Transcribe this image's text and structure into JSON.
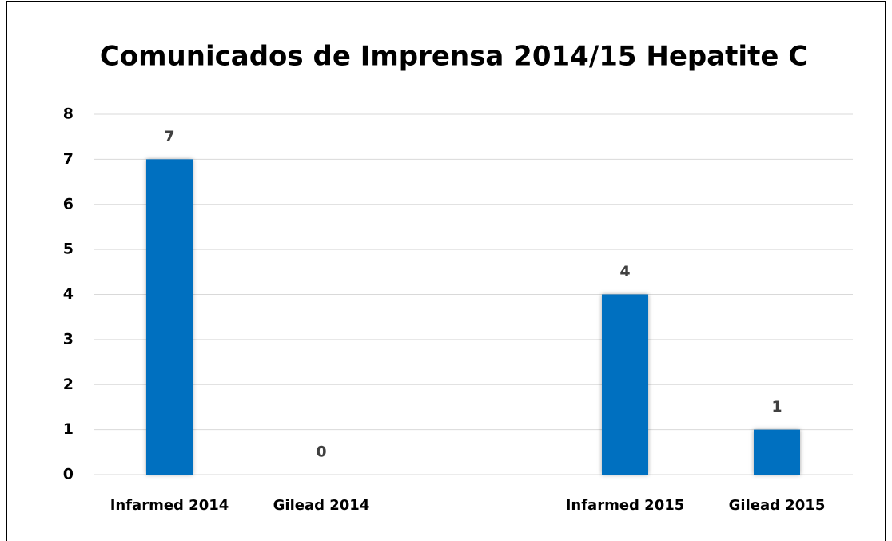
{
  "chart_data": {
    "type": "bar",
    "title": "Comunicados de Imprensa 2014/15 Hepatite C",
    "categories": [
      "Infarmed 2014",
      "Gilead 2014",
      null,
      "Infarmed 2015",
      "Gilead 2015"
    ],
    "values": [
      7,
      0,
      null,
      4,
      1
    ],
    "color": "#0070c0",
    "ylim": [
      0,
      8
    ],
    "yticks": [
      0,
      1,
      2,
      3,
      4,
      5,
      6,
      7,
      8
    ],
    "grid": true,
    "data_labels": true
  }
}
